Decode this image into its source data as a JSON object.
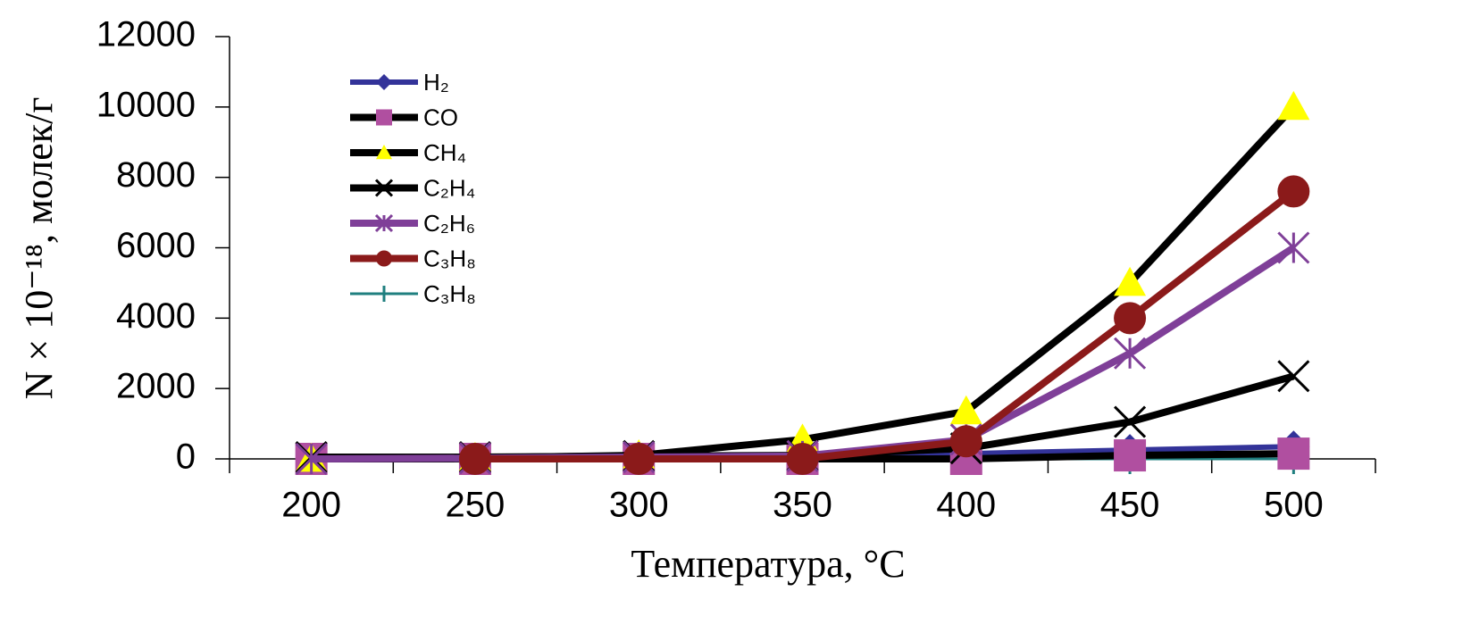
{
  "chart_data": {
    "type": "line",
    "xlabel": "Температура, °C",
    "ylabel": "N × 10⁻¹⁸, молек/г",
    "categories": [
      "200",
      "250",
      "300",
      "350",
      "400",
      "450",
      "500"
    ],
    "ylim": [
      0,
      12000
    ],
    "yticks": [
      0,
      2000,
      4000,
      6000,
      8000,
      10000,
      12000
    ],
    "series": [
      {
        "name": "C₃H₈",
        "line_color": "#1f7f7f",
        "color": "#1f7f7f",
        "marker": "plus",
        "values": [
          0,
          0,
          0,
          0,
          0,
          0,
          0
        ]
      },
      {
        "name": "H₂",
        "line_color": "#333399",
        "color": "#333399",
        "marker": "diamond",
        "values": [
          0,
          10,
          20,
          50,
          150,
          250,
          350
        ]
      },
      {
        "name": "CO",
        "line_color": "#000000",
        "color": "#b04fa0",
        "marker": "square",
        "values": [
          0,
          0,
          0,
          0,
          0,
          100,
          150
        ]
      },
      {
        "name": "CH₄",
        "line_color": "#000000",
        "color": "#ffff00",
        "marker": "triangle",
        "values": [
          0,
          30,
          100,
          550,
          1350,
          5000,
          10000
        ]
      },
      {
        "name": "C₂H₄",
        "line_color": "#000000",
        "color": "#000000",
        "marker": "x",
        "values": [
          50,
          50,
          80,
          100,
          300,
          1050,
          2350
        ]
      },
      {
        "name": "C₂H₆",
        "line_color": "#7f3f98",
        "color": "#7f3f98",
        "marker": "asterisk",
        "values": [
          0,
          20,
          50,
          80,
          550,
          3000,
          6000
        ]
      },
      {
        "name": "C₃H₈",
        "line_color": "#8b1a1a",
        "color": "#8b1a1a",
        "marker": "circle",
        "values": [
          null,
          0,
          0,
          0,
          500,
          4000,
          7600
        ]
      }
    ],
    "legend_order": [
      1,
      2,
      3,
      4,
      5,
      6,
      0
    ],
    "legend": "upper left"
  }
}
